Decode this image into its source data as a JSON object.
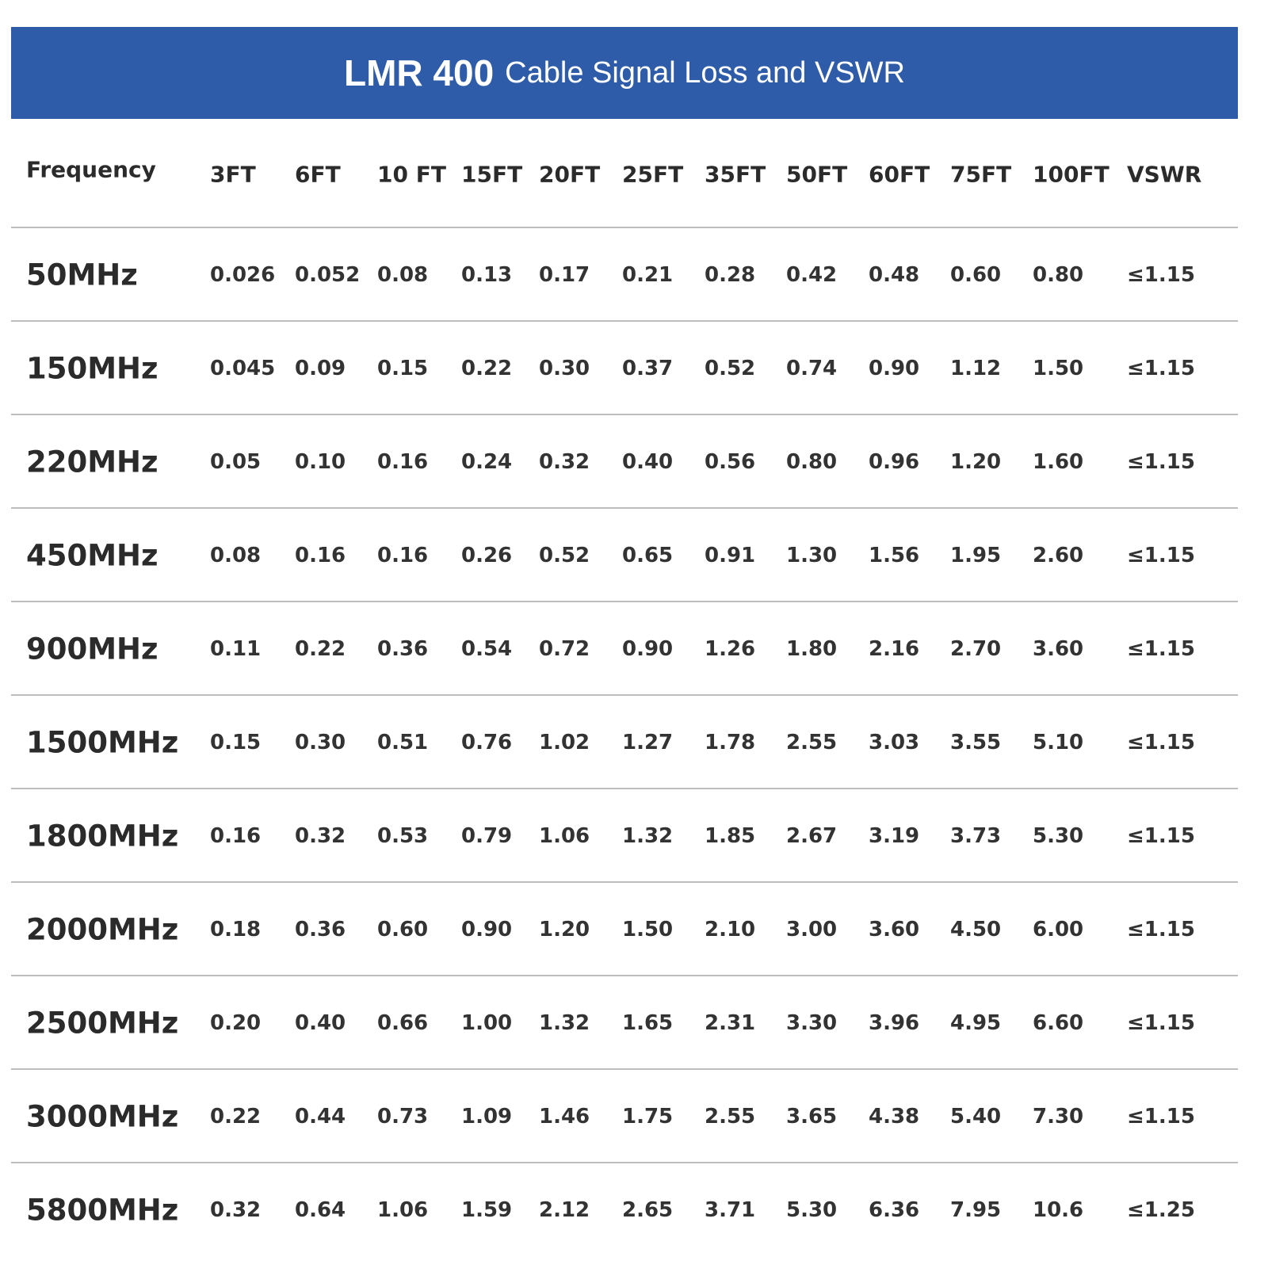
{
  "title": {
    "bold": "LMR 400",
    "text": "Cable Signal Loss and VSWR"
  },
  "table": {
    "header": [
      "Frequency",
      "3FT",
      "6FT",
      "10 FT",
      "15FT",
      "20FT",
      "25FT",
      "35FT",
      "50FT",
      "60FT",
      "75FT",
      "100FT",
      "VSWR"
    ],
    "rows": [
      [
        "50MHz",
        "0.026",
        "0.052",
        "0.08",
        "0.13",
        "0.17",
        "0.21",
        "0.28",
        "0.42",
        "0.48",
        "0.60",
        "0.80",
        "≤1.15"
      ],
      [
        "150MHz",
        "0.045",
        "0.09",
        "0.15",
        "0.22",
        "0.30",
        "0.37",
        "0.52",
        "0.74",
        "0.90",
        "1.12",
        "1.50",
        "≤1.15"
      ],
      [
        "220MHz",
        "0.05",
        "0.10",
        "0.16",
        "0.24",
        "0.32",
        "0.40",
        "0.56",
        "0.80",
        "0.96",
        "1.20",
        "1.60",
        "≤1.15"
      ],
      [
        "450MHz",
        "0.08",
        "0.16",
        "0.16",
        "0.26",
        "0.52",
        "0.65",
        "0.91",
        "1.30",
        "1.56",
        "1.95",
        "2.60",
        "≤1.15"
      ],
      [
        "900MHz",
        "0.11",
        "0.22",
        "0.36",
        "0.54",
        "0.72",
        "0.90",
        "1.26",
        "1.80",
        "2.16",
        "2.70",
        "3.60",
        "≤1.15"
      ],
      [
        "1500MHz",
        "0.15",
        "0.30",
        "0.51",
        "0.76",
        "1.02",
        "1.27",
        "1.78",
        "2.55",
        "3.03",
        "3.55",
        "5.10",
        "≤1.15"
      ],
      [
        "1800MHz",
        "0.16",
        "0.32",
        "0.53",
        "0.79",
        "1.06",
        "1.32",
        "1.85",
        "2.67",
        "3.19",
        "3.73",
        "5.30",
        "≤1.15"
      ],
      [
        "2000MHz",
        "0.18",
        "0.36",
        "0.60",
        "0.90",
        "1.20",
        "1.50",
        "2.10",
        "3.00",
        "3.60",
        "4.50",
        "6.00",
        "≤1.15"
      ],
      [
        "2500MHz",
        "0.20",
        "0.40",
        "0.66",
        "1.00",
        "1.32",
        "1.65",
        "2.31",
        "3.30",
        "3.96",
        "4.95",
        "6.60",
        "≤1.15"
      ],
      [
        "3000MHz",
        "0.22",
        "0.44",
        "0.73",
        "1.09",
        "1.46",
        "1.75",
        "2.55",
        "3.65",
        "4.38",
        "5.40",
        "7.30",
        "≤1.15"
      ],
      [
        "5800MHz",
        "0.32",
        "0.64",
        "1.06",
        "1.59",
        "2.12",
        "2.65",
        "3.71",
        "5.30",
        "6.36",
        "7.95",
        "10.6",
        "≤1.25"
      ]
    ]
  }
}
